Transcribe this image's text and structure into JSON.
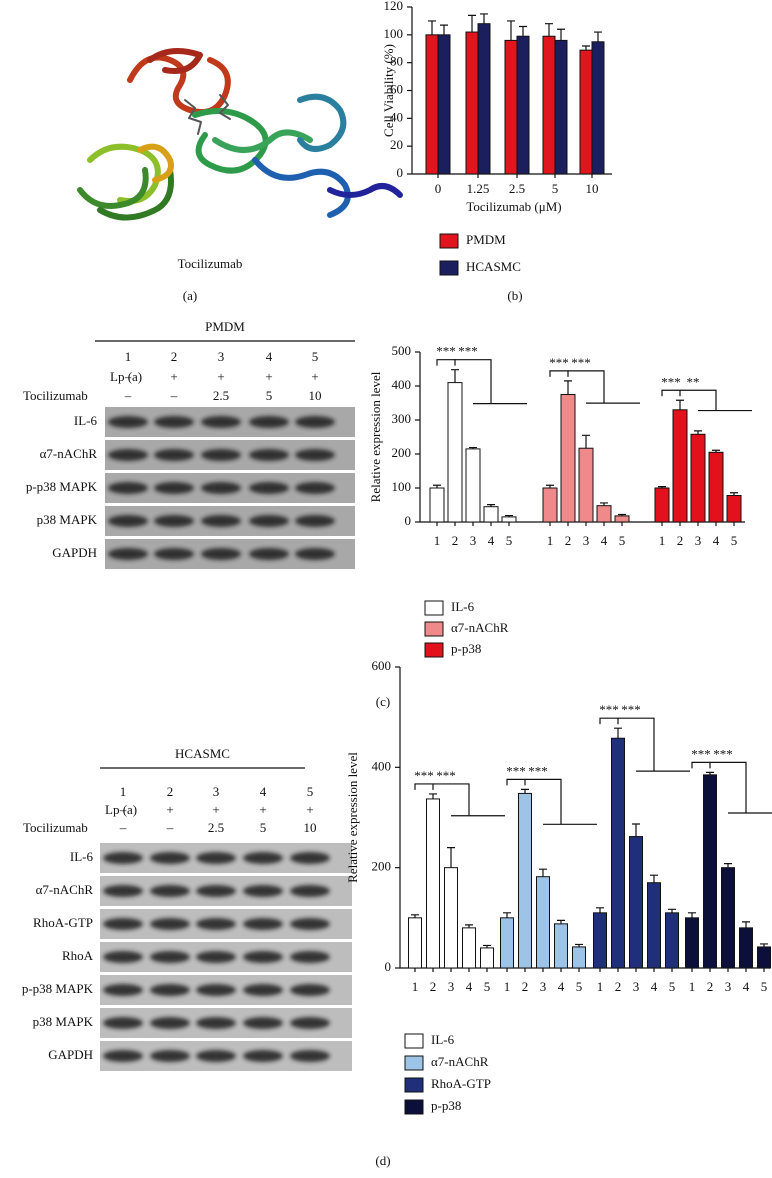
{
  "figure": {
    "structure_caption": "Tocilizumab",
    "panel_labels": [
      "(a)",
      "(b)",
      "(c)",
      "(d)"
    ],
    "blots": [
      {
        "cell": "PMDM",
        "lanes": [
          "1",
          "2",
          "3",
          "4",
          "5"
        ],
        "treatments": [
          {
            "label": "Lp (a)",
            "values": [
              "–",
              "+",
              "+",
              "+",
              "+"
            ]
          },
          {
            "label": "Tocilizumab",
            "values": [
              "–",
              "–",
              "2.5",
              "5",
              "10"
            ]
          }
        ],
        "proteins": [
          "IL-6",
          "α7-nAChR",
          "p-p38 MAPK",
          "p38 MAPK",
          "GAPDH"
        ]
      },
      {
        "cell": "HCASMC",
        "lanes": [
          "1",
          "2",
          "3",
          "4",
          "5"
        ],
        "treatments": [
          {
            "label": "Lp (a)",
            "values": [
              "–",
              "+",
              "+",
              "+",
              "+"
            ]
          },
          {
            "label": "Tocilizumab",
            "values": [
              "–",
              "–",
              "2.5",
              "5",
              "10"
            ]
          }
        ],
        "proteins": [
          "IL-6",
          "α7-nAChR",
          "RhoA-GTP",
          "RhoA",
          "p-p38 MAPK",
          "p38 MAPK",
          "GAPDH"
        ]
      }
    ]
  },
  "chart_data": [
    {
      "type": "bar",
      "y_label": "Cell Viability (%)",
      "x_label": "Tocilizumab (μM)",
      "categories": [
        "0",
        "1.25",
        "2.5",
        "5",
        "10"
      ],
      "series": [
        {
          "name": "PMDM",
          "color": "#e0151e",
          "values": [
            100,
            102,
            96,
            99,
            89
          ],
          "errors": [
            10,
            12,
            14,
            9,
            3
          ]
        },
        {
          "name": "HCASMC",
          "color": "#1b1f5e",
          "values": [
            100,
            108,
            99,
            96,
            95
          ],
          "errors": [
            7,
            7,
            7,
            8,
            7
          ]
        }
      ],
      "ylim": [
        0,
        120
      ],
      "yticks": [
        0,
        20,
        40,
        60,
        80,
        100,
        120
      ],
      "legend": "bottom"
    },
    {
      "type": "bar",
      "y_label": "Relative expression level",
      "categories": [
        "1",
        "2",
        "3",
        "4",
        "5"
      ],
      "series": [
        {
          "name": "IL-6",
          "color": "#ffffff",
          "values": [
            100,
            410,
            215,
            45,
            15
          ],
          "errors": [
            8,
            38,
            4,
            6,
            4
          ],
          "significance": [
            "***",
            "***"
          ]
        },
        {
          "name": "α7-nAChR",
          "color": "#f08a8a",
          "values": [
            100,
            375,
            217,
            48,
            18
          ],
          "errors": [
            8,
            40,
            38,
            8,
            4
          ],
          "significance": [
            "***",
            "***"
          ]
        },
        {
          "name": "p-p38",
          "color": "#e3111b",
          "values": [
            100,
            330,
            258,
            205,
            78
          ],
          "errors": [
            4,
            28,
            10,
            6,
            8
          ],
          "significance": [
            "***",
            "**"
          ]
        }
      ],
      "ylim": [
        0,
        500
      ],
      "yticks": [
        0,
        100,
        200,
        300,
        400,
        500
      ],
      "legend": "bottom"
    },
    {
      "type": "bar",
      "y_label": "Relative expression level",
      "categories": [
        "1",
        "2",
        "3",
        "4",
        "5"
      ],
      "series": [
        {
          "name": "IL-6",
          "color": "#ffffff",
          "values": [
            100,
            337,
            200,
            80,
            40
          ],
          "errors": [
            6,
            10,
            40,
            6,
            5
          ],
          "significance": [
            "***",
            "***"
          ]
        },
        {
          "name": "α7-nAChR",
          "color": "#9dc3e6",
          "values": [
            100,
            348,
            182,
            88,
            42
          ],
          "errors": [
            10,
            8,
            15,
            7,
            5
          ],
          "significance": [
            "***",
            "***"
          ]
        },
        {
          "name": "RhoA-GTP",
          "color": "#1f2f7a",
          "values": [
            110,
            458,
            262,
            170,
            110
          ],
          "errors": [
            10,
            20,
            25,
            15,
            7
          ],
          "significance": [
            "***",
            "***"
          ]
        },
        {
          "name": "p-p38",
          "color": "#0b0f3a",
          "values": [
            100,
            385,
            200,
            80,
            42
          ],
          "errors": [
            10,
            5,
            8,
            12,
            6
          ],
          "significance": [
            "***",
            "***"
          ]
        }
      ],
      "ylim": [
        0,
        600
      ],
      "yticks": [
        0,
        200,
        400,
        600
      ],
      "legend": "bottom"
    }
  ]
}
